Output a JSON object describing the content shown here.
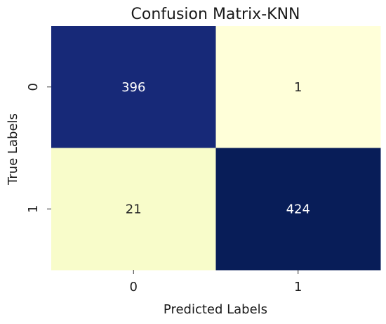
{
  "chart_data": {
    "type": "heatmap",
    "title": "Confusion Matrix-KNN",
    "xlabel": "Predicted Labels",
    "ylabel": "True Labels",
    "x_categories": [
      "0",
      "1"
    ],
    "y_categories": [
      "0",
      "1"
    ],
    "values": [
      [
        396,
        1
      ],
      [
        21,
        424
      ]
    ],
    "colormap": "YlGnBu",
    "colorbar": false,
    "colors": {
      "low": "#ffffd9",
      "mid_low": "#f7fcc4",
      "high_dark": "#081d58",
      "high": "#162a6e",
      "text_on_dark": "#ffffff",
      "text_on_light": "#262626"
    }
  }
}
